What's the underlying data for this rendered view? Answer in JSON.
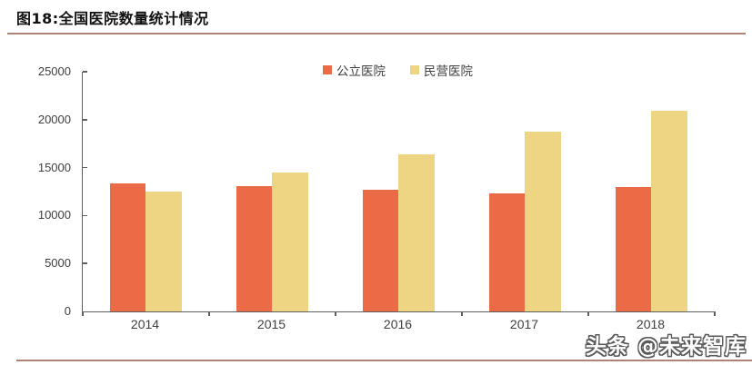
{
  "header": {
    "title": "图18:全国医院数量统计情况"
  },
  "watermark": {
    "text": "头条 @未来智库"
  },
  "colors": {
    "public_bar": "#EC6B47",
    "private_bar": "#EDD584",
    "rule_line": "#B08379",
    "axis_line": "#5F5F5F",
    "label_text": "#3E3E3E",
    "title_text": "#111111"
  },
  "chart_data": {
    "type": "bar",
    "title": "图18:全国医院数量统计情况",
    "categories": [
      "2014",
      "2015",
      "2016",
      "2017",
      "2018"
    ],
    "series": [
      {
        "key": "public",
        "name": "公立医院",
        "color": "#EC6B47",
        "values": [
          13314,
          13069,
          12708,
          12297,
          12950
        ]
      },
      {
        "key": "private",
        "name": "民营医院",
        "color": "#EDD584",
        "values": [
          12546,
          14518,
          16432,
          18759,
          20950
        ]
      }
    ],
    "xlabel": "",
    "ylabel": "",
    "ylim": [
      0,
      25000
    ],
    "yticks": [
      0,
      5000,
      10000,
      15000,
      20000,
      25000
    ],
    "ytick_labels": [
      "0",
      "5000",
      "10000",
      "15000",
      "20000",
      "25000"
    ],
    "legend_position": "top-center",
    "grid": false
  }
}
